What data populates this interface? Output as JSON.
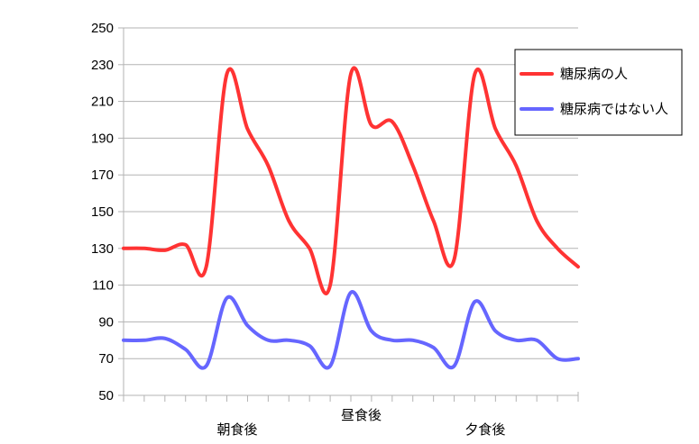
{
  "chart_data": {
    "type": "line",
    "title": "",
    "xlabel": "",
    "ylabel": "",
    "ylim": [
      50,
      250
    ],
    "yticks": [
      50,
      70,
      90,
      110,
      130,
      150,
      170,
      190,
      210,
      230,
      250
    ],
    "grid": true,
    "legend_position": "top-right",
    "x_points": 23,
    "category_labels": [
      {
        "label": "朝食後",
        "index": 5.5,
        "row": 1
      },
      {
        "label": "昼食後",
        "index": 11.5,
        "row": 0
      },
      {
        "label": "夕食後",
        "index": 17.5,
        "row": 1
      }
    ],
    "series": [
      {
        "name": "糖尿病の人",
        "color": "#ff3333",
        "values": [
          130,
          130,
          129,
          132,
          120,
          225,
          195,
          175,
          145,
          130,
          110,
          225,
          197,
          199,
          175,
          145,
          124,
          225,
          195,
          175,
          145,
          130,
          120
        ]
      },
      {
        "name": "糖尿病ではない人",
        "color": "#6666ff",
        "values": [
          80,
          80,
          81,
          75,
          66,
          103,
          88,
          80,
          80,
          77,
          66,
          106,
          85,
          80,
          80,
          76,
          66,
          101,
          85,
          80,
          80,
          70,
          70
        ]
      }
    ]
  }
}
